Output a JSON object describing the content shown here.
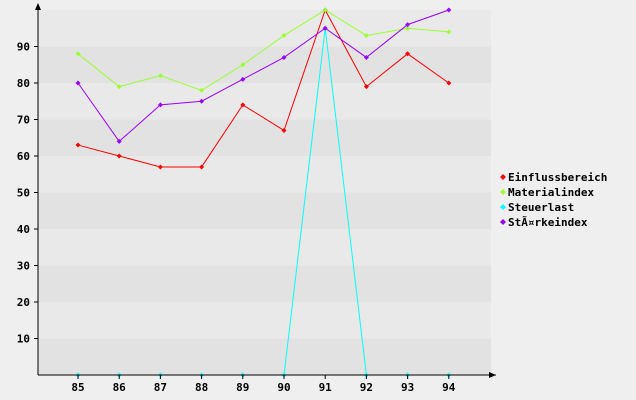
{
  "chart_data": {
    "type": "line",
    "title": "",
    "xlabel": "",
    "ylabel": "",
    "categories": [
      "85",
      "86",
      "87",
      "88",
      "89",
      "90",
      "91",
      "92",
      "93",
      "94"
    ],
    "ylim": [
      0,
      100
    ],
    "yticks": [
      10,
      20,
      30,
      40,
      50,
      60,
      70,
      80,
      90
    ],
    "grid": "horizontal bands",
    "legend_position": "right",
    "series": [
      {
        "name": "Einflussbereich",
        "color": "#ff0000",
        "values": [
          63,
          60,
          57,
          57,
          74,
          67,
          100,
          79,
          88,
          80
        ]
      },
      {
        "name": "Materialindex",
        "color": "#99ff33",
        "values": [
          88,
          79,
          82,
          78,
          85,
          93,
          100,
          93,
          95,
          94
        ]
      },
      {
        "name": "Steuerlast",
        "color": "#00ffff",
        "values": [
          0,
          0,
          0,
          0,
          0,
          0,
          95,
          0,
          0,
          0
        ]
      },
      {
        "name": "StÃ¤rkeindex",
        "color": "#9900ff",
        "values": [
          80,
          64,
          74,
          75,
          81,
          87,
          95,
          87,
          96,
          100
        ]
      }
    ]
  }
}
